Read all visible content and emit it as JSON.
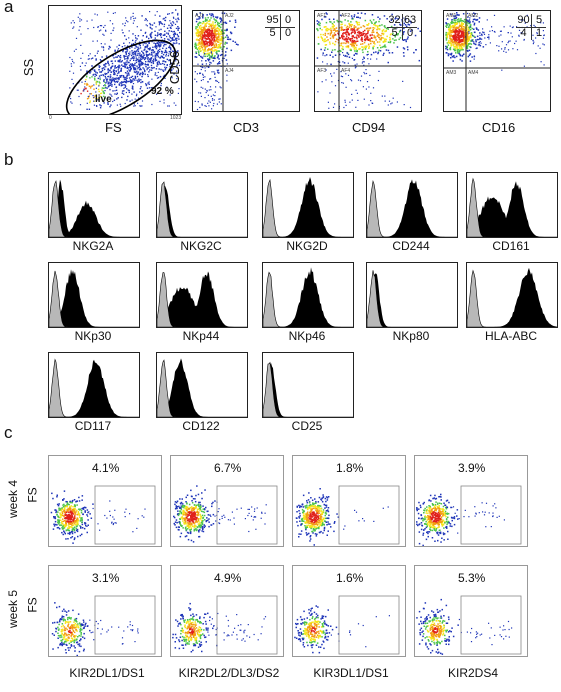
{
  "panel_a": {
    "letter": "a",
    "gate_plot": {
      "ylabel": "SS",
      "xlabel": "FS",
      "gate_label": "live",
      "gate_percent": "92 %",
      "x_max_tick": "1023",
      "x_min_tick": "0"
    },
    "quadrant_plots": [
      {
        "xlabel": "CD3",
        "ylabel": "CD56",
        "ul": "95",
        "ur": "0",
        "ll": "5",
        "lr": "0",
        "gate_tags": [
          "AJ1",
          "AJ2",
          "AJ4"
        ]
      },
      {
        "xlabel": "CD94",
        "ylabel": "",
        "ul": "32",
        "ur": "63",
        "ll": "5",
        "lr": "0",
        "gate_tags": [
          "AF1",
          "AF2",
          "AF3",
          "AF4"
        ]
      },
      {
        "xlabel": "CD16",
        "ylabel": "",
        "ul": "90",
        "ur": "5",
        "ll": "4",
        "lr": "1",
        "gate_tags": [
          "AM1",
          "AM2",
          "AM3",
          "AM4"
        ]
      }
    ]
  },
  "panel_b": {
    "letter": "b",
    "histograms": [
      {
        "label": "NKG2A",
        "shape": "bimodal"
      },
      {
        "label": "NKG2C",
        "shape": "negative"
      },
      {
        "label": "NKG2D",
        "shape": "high"
      },
      {
        "label": "CD244",
        "shape": "high"
      },
      {
        "label": "CD161",
        "shape": "broad"
      },
      {
        "label": "NKp30",
        "shape": "low"
      },
      {
        "label": "NKp44",
        "shape": "broad"
      },
      {
        "label": "NKp46",
        "shape": "high"
      },
      {
        "label": "NKp80",
        "shape": "negative"
      },
      {
        "label": "HLA-ABC",
        "shape": "veryhigh"
      },
      {
        "label": "CD117",
        "shape": "high"
      },
      {
        "label": "CD122",
        "shape": "low"
      },
      {
        "label": "CD25",
        "shape": "negative"
      }
    ]
  },
  "panel_c": {
    "letter": "c",
    "row_labels": [
      "week 4",
      "week 5"
    ],
    "ylabel": "FS",
    "columns": [
      "KIR2DL1/DS1",
      "KIR2DL2/DL3/DS2",
      "KIR3DL1/DS1",
      "KIR2DS4"
    ],
    "percentages": [
      [
        "4.1%",
        "6.7%",
        "1.8%",
        "3.9%"
      ],
      [
        "3.1%",
        "4.9%",
        "1.6%",
        "5.3%"
      ]
    ]
  }
}
